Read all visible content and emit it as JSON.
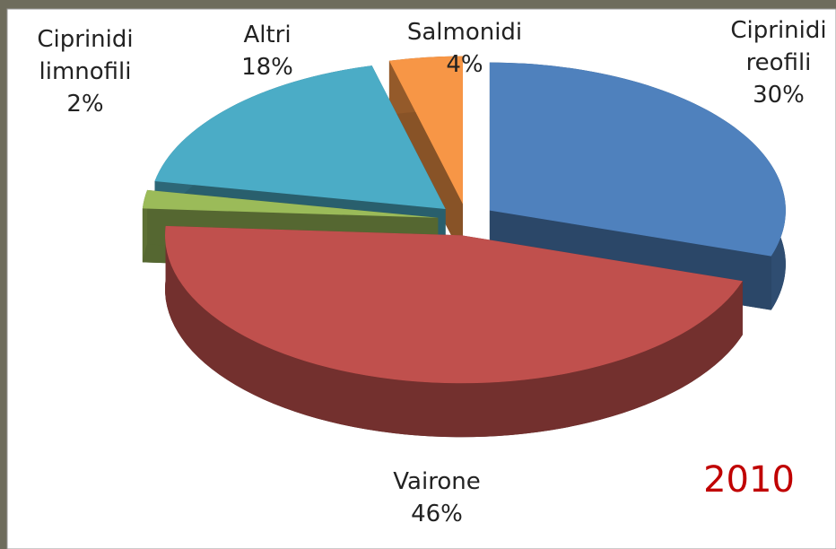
{
  "chart_data": {
    "type": "pie",
    "three_d": true,
    "exploded": true,
    "categories": [
      "Ciprinidi reofili",
      "Vairone",
      "Ciprinidi limnofili",
      "Altri",
      "Salmonidi"
    ],
    "values": [
      30,
      46,
      2,
      18,
      4
    ],
    "value_labels": [
      "30%",
      "46%",
      "2%",
      "18%",
      "4%"
    ],
    "colors": [
      "#4f81bd",
      "#c0504d",
      "#9bbb59",
      "#4bacc6",
      "#f79646"
    ],
    "annotation": "2010"
  }
}
